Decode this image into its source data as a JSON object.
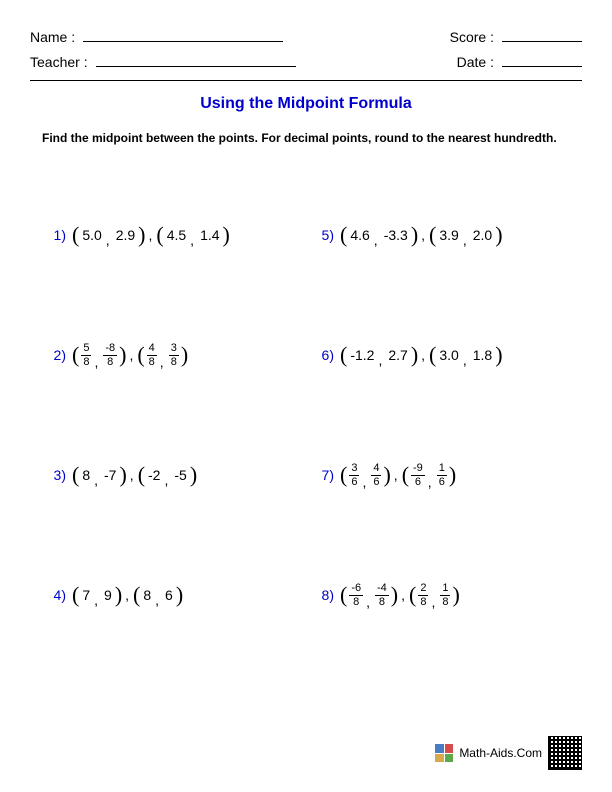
{
  "header": {
    "name_label": "Name :",
    "teacher_label": "Teacher :",
    "score_label": "Score :",
    "date_label": "Date :"
  },
  "title": "Using the Midpoint Formula",
  "instructions": "Find the midpoint between the points. For decimal points, round to the nearest hundredth.",
  "left_problems": [
    {
      "n": "1)",
      "p1": {
        "type": "dec",
        "x": "5.0",
        "y": "2.9"
      },
      "p2": {
        "type": "dec",
        "x": "4.5",
        "y": "1.4"
      }
    },
    {
      "n": "2)",
      "p1": {
        "type": "frac",
        "xn": "5",
        "xd": "8",
        "yn": "-8",
        "yd": "8"
      },
      "p2": {
        "type": "frac",
        "xn": "4",
        "xd": "8",
        "yn": "3",
        "yd": "8"
      }
    },
    {
      "n": "3)",
      "p1": {
        "type": "int",
        "x": "8",
        "y": "-7"
      },
      "p2": {
        "type": "int",
        "x": "-2",
        "y": "-5"
      }
    },
    {
      "n": "4)",
      "p1": {
        "type": "int",
        "x": "7",
        "y": "9"
      },
      "p2": {
        "type": "int",
        "x": "8",
        "y": "6"
      }
    }
  ],
  "right_problems": [
    {
      "n": "5)",
      "p1": {
        "type": "dec",
        "x": "4.6",
        "y": "-3.3"
      },
      "p2": {
        "type": "dec",
        "x": "3.9",
        "y": "2.0"
      }
    },
    {
      "n": "6)",
      "p1": {
        "type": "dec",
        "x": "-1.2",
        "y": "2.7"
      },
      "p2": {
        "type": "dec",
        "x": "3.0",
        "y": "1.8"
      }
    },
    {
      "n": "7)",
      "p1": {
        "type": "frac",
        "xn": "3",
        "xd": "6",
        "yn": "4",
        "yd": "6"
      },
      "p2": {
        "type": "frac",
        "xn": "-9",
        "xd": "6",
        "yn": "1",
        "yd": "6"
      }
    },
    {
      "n": "8)",
      "p1": {
        "type": "frac",
        "xn": "-6",
        "xd": "8",
        "yn": "-4",
        "yd": "8"
      },
      "p2": {
        "type": "frac",
        "xn": "2",
        "xd": "8",
        "yn": "1",
        "yd": "8"
      }
    }
  ],
  "footer": {
    "site": "Math-Aids.Com"
  },
  "colors": {
    "accent": "#0000cc",
    "text": "#000000",
    "background": "#ffffff"
  }
}
